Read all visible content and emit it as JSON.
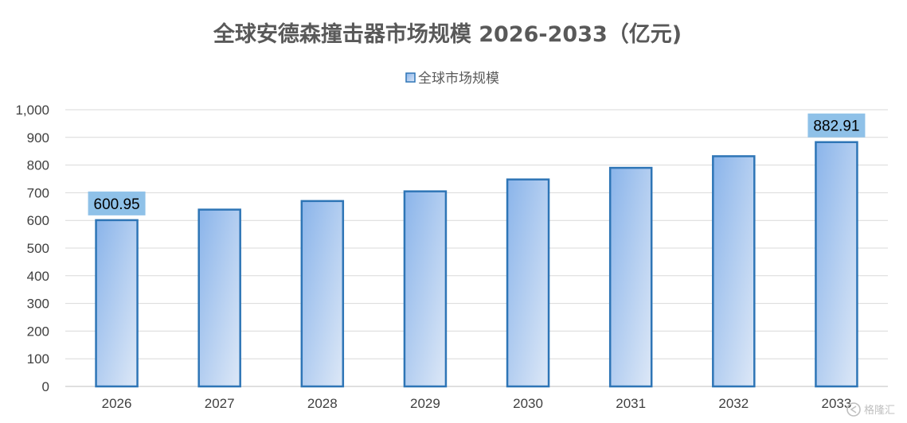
{
  "chart_data": {
    "type": "bar",
    "title": "全球安德森撞击器市场规模 2026-2033（亿元)",
    "legend": {
      "position": "top",
      "entries": [
        "全球市场规模"
      ]
    },
    "categories": [
      "2026",
      "2027",
      "2028",
      "2029",
      "2030",
      "2031",
      "2032",
      "2033"
    ],
    "series": [
      {
        "name": "全球市场规模",
        "values": [
          600.95,
          639,
          670,
          705,
          748,
          790,
          832,
          882.91
        ]
      }
    ],
    "data_labels": [
      {
        "index": 0,
        "text": "600.95"
      },
      {
        "index": 7,
        "text": "882.91"
      }
    ],
    "yticks": [
      "0",
      "100",
      "200",
      "300",
      "400",
      "500",
      "600",
      "700",
      "800",
      "900",
      "1,000"
    ],
    "ylim": [
      0,
      1000
    ],
    "grid": true,
    "colors": {
      "bar_top": "#8ab4ea",
      "bar_bottom": "#dde8f7",
      "bar_stroke": "#2e75b6",
      "label_bg": "#8fc1e8",
      "grid": "#d9d9d9"
    }
  },
  "watermark": {
    "icon": "gelonghui-logo-icon",
    "text": "格隆汇"
  }
}
